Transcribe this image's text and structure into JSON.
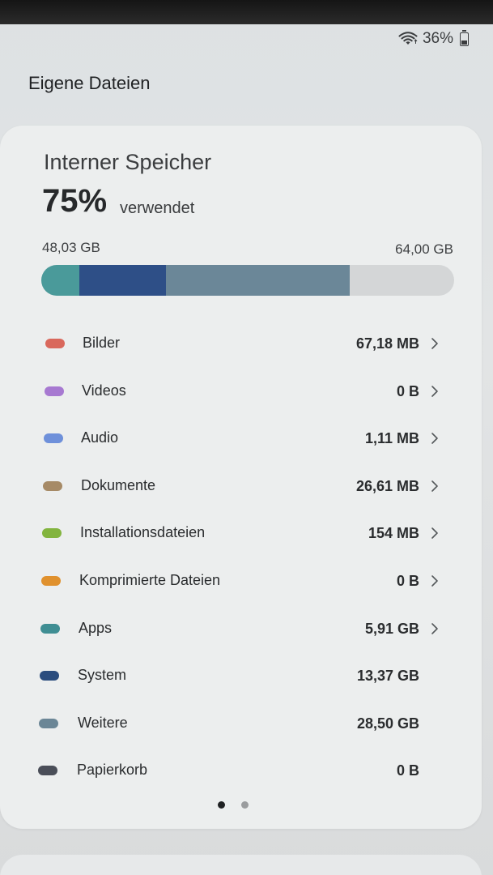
{
  "status": {
    "battery": "36%"
  },
  "header": {
    "title": "Eigene Dateien"
  },
  "storage": {
    "title": "Interner Speicher",
    "percent": "75%",
    "used_label": "verwendet",
    "used_size": "48,03 GB",
    "total_size": "64,00 GB",
    "usage_fraction": 0.75,
    "segments": [
      {
        "name": "Apps",
        "gb": 5.91,
        "color": "#4a9a9a"
      },
      {
        "name": "System",
        "gb": 13.37,
        "color": "#2e4f87"
      },
      {
        "name": "Weitere",
        "gb": 28.5,
        "color": "#6b8798"
      }
    ]
  },
  "categories": [
    {
      "label": "Bilder",
      "size": "67,18 MB",
      "color": "#d9685c",
      "chevron": true
    },
    {
      "label": "Videos",
      "size": "0 B",
      "color": "#a779d1",
      "chevron": true
    },
    {
      "label": "Audio",
      "size": "1,11 MB",
      "color": "#6e90da",
      "chevron": true
    },
    {
      "label": "Dokumente",
      "size": "26,61 MB",
      "color": "#a68a66",
      "chevron": true
    },
    {
      "label": "Installationsdateien",
      "size": "154 MB",
      "color": "#82b43e",
      "chevron": true
    },
    {
      "label": "Komprimierte Dateien",
      "size": "0 B",
      "color": "#e0912e",
      "chevron": true
    },
    {
      "label": "Apps",
      "size": "5,91 GB",
      "color": "#3f8e93",
      "chevron": true
    },
    {
      "label": "System",
      "size": "13,37 GB",
      "color": "#2b4d7e",
      "chevron": false
    },
    {
      "label": "Weitere",
      "size": "28,50 GB",
      "color": "#6b8696",
      "chevron": false
    },
    {
      "label": "Papierkorb",
      "size": "0 B",
      "color": "#4a4e58",
      "chevron": false
    }
  ],
  "pager": {
    "count": 2,
    "active": 0
  }
}
